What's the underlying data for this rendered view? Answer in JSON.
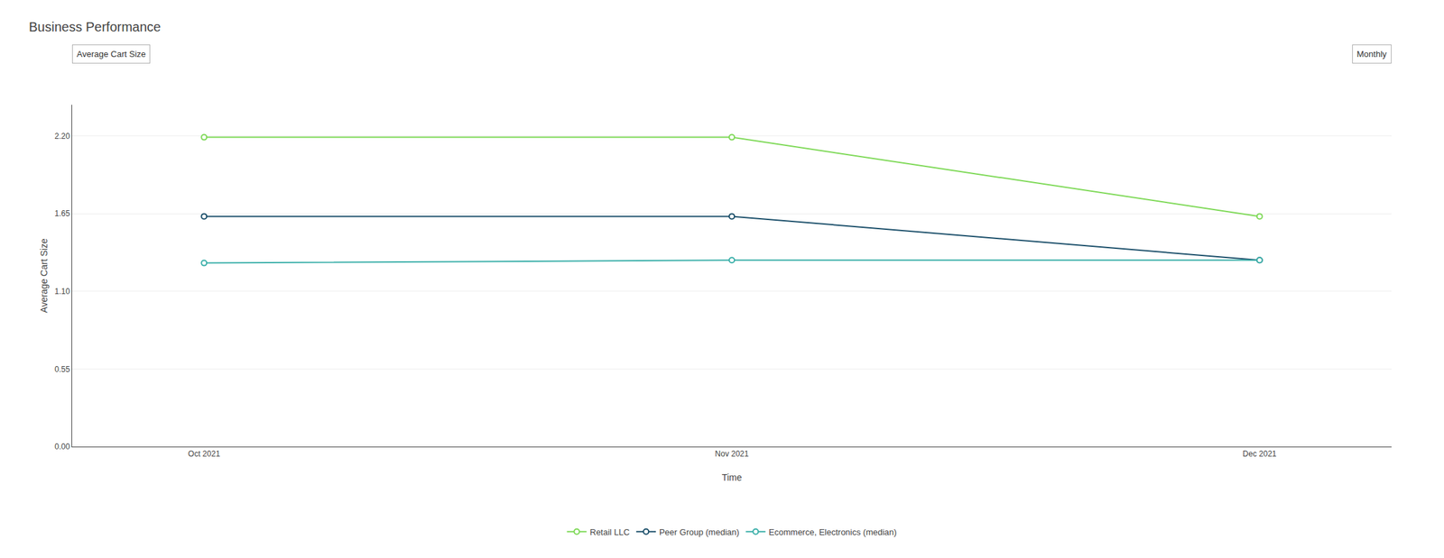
{
  "chart_data": {
    "type": "line",
    "title": "Business Performance",
    "annotations": [
      "Average Cart Size",
      "Monthly"
    ],
    "xlabel": "Time",
    "ylabel": "Average Cart Size",
    "categories": [
      "Oct 2021",
      "Nov 2021",
      "Dec 2021"
    ],
    "series": [
      {
        "name": "Retail LLC",
        "color": "#7ED957",
        "values": [
          2.19,
          2.19,
          1.63
        ]
      },
      {
        "name": "Peer Group (median)",
        "color": "#1B4F6A",
        "values": [
          1.63,
          1.63,
          1.32
        ]
      },
      {
        "name": "Ecommerce, Electronics (median)",
        "color": "#3AAFA9",
        "values": [
          1.3,
          1.32,
          1.32
        ]
      }
    ],
    "ylim": [
      0.0,
      2.42
    ],
    "yticks": [
      {
        "value": 0.0,
        "label": "0.00"
      },
      0.55,
      {
        "value": 1.1,
        "label": "1.10"
      },
      1.65,
      {
        "value": 2.2,
        "label": "2.20"
      }
    ],
    "grid": true,
    "legend": "bottom",
    "marker": "circle"
  }
}
